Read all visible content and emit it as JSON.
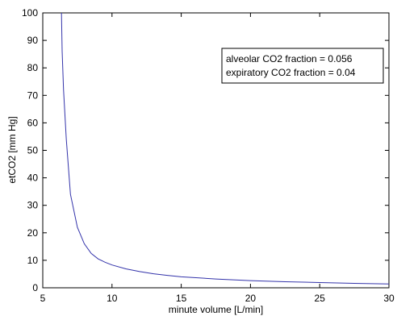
{
  "chart_data": {
    "type": "line",
    "title": "",
    "xlabel": "minute volume [L/min]",
    "ylabel": "etCO2 [mm Hg]",
    "xlim": [
      5,
      30
    ],
    "ylim": [
      0,
      100
    ],
    "xticks": [
      5,
      10,
      15,
      20,
      25,
      30
    ],
    "yticks": [
      0,
      10,
      20,
      30,
      40,
      50,
      60,
      70,
      80,
      90,
      100
    ],
    "grid": false,
    "line_color": "#3333aa",
    "annotation_lines": [
      "alveolar CO2 fraction = 0.056",
      "expiratory CO2 fraction = 0.04"
    ],
    "series": [
      {
        "x": [
          6.35,
          6.4,
          6.5,
          6.7,
          7.0,
          7.5,
          8.0,
          8.5,
          9.0,
          9.5,
          10.0,
          11.0,
          12.0,
          13.0,
          14.0,
          15.0,
          17.5,
          20.0,
          22.5,
          25.0,
          27.5,
          30.0
        ],
        "y": [
          100,
          86,
          72,
          54,
          34,
          22,
          16,
          12.5,
          10.5,
          9.3,
          8.3,
          6.9,
          5.9,
          5.1,
          4.5,
          4.0,
          3.2,
          2.6,
          2.2,
          1.9,
          1.6,
          1.4
        ]
      }
    ]
  }
}
